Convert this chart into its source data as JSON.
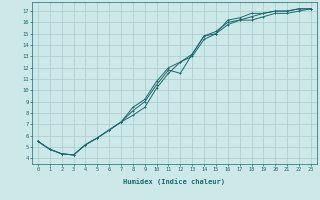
{
  "xlabel": "Humidex (Indice chaleur)",
  "ylabel": "",
  "bg_color": "#cce8e8",
  "grid_color": "#aacccc",
  "line_color": "#1a6b6b",
  "xlim": [
    -0.5,
    23.5
  ],
  "ylim": [
    3.5,
    17.8
  ],
  "xticks": [
    0,
    1,
    2,
    3,
    4,
    5,
    6,
    7,
    8,
    9,
    10,
    11,
    12,
    13,
    14,
    15,
    16,
    17,
    18,
    19,
    20,
    21,
    22,
    23
  ],
  "yticks": [
    4,
    5,
    6,
    7,
    8,
    9,
    10,
    11,
    12,
    13,
    14,
    15,
    16,
    17
  ],
  "line1_x": [
    0,
    1,
    2,
    3,
    4,
    5,
    6,
    7,
    8,
    9,
    10,
    11,
    12,
    13,
    14,
    15,
    16,
    17,
    18,
    19,
    20,
    21,
    22,
    23
  ],
  "line1_y": [
    5.5,
    4.8,
    4.4,
    4.3,
    5.2,
    5.8,
    6.5,
    7.2,
    7.8,
    8.5,
    10.2,
    11.5,
    12.5,
    13.2,
    14.8,
    15.2,
    16.0,
    16.2,
    16.2,
    16.5,
    16.8,
    16.8,
    17.0,
    17.2
  ],
  "line2_x": [
    0,
    1,
    2,
    3,
    4,
    5,
    6,
    7,
    8,
    9,
    10,
    11,
    12,
    13,
    14,
    15,
    16,
    17,
    18,
    19,
    20,
    21,
    22,
    23
  ],
  "line2_y": [
    5.5,
    4.8,
    4.4,
    4.3,
    5.2,
    5.8,
    6.5,
    7.2,
    8.2,
    9.0,
    10.5,
    11.8,
    11.5,
    13.2,
    14.8,
    15.0,
    16.2,
    16.4,
    16.8,
    16.8,
    17.0,
    17.0,
    17.2,
    17.2
  ],
  "line3_x": [
    0,
    1,
    2,
    3,
    4,
    5,
    6,
    7,
    8,
    9,
    10,
    11,
    12,
    13,
    14,
    15,
    16,
    17,
    18,
    19,
    20,
    21,
    22,
    23
  ],
  "line3_y": [
    5.5,
    4.8,
    4.4,
    4.3,
    5.2,
    5.8,
    6.5,
    7.2,
    8.5,
    9.2,
    10.8,
    12.0,
    12.5,
    13.0,
    14.5,
    15.0,
    15.8,
    16.2,
    16.5,
    16.8,
    17.0,
    17.0,
    17.2,
    17.2
  ]
}
